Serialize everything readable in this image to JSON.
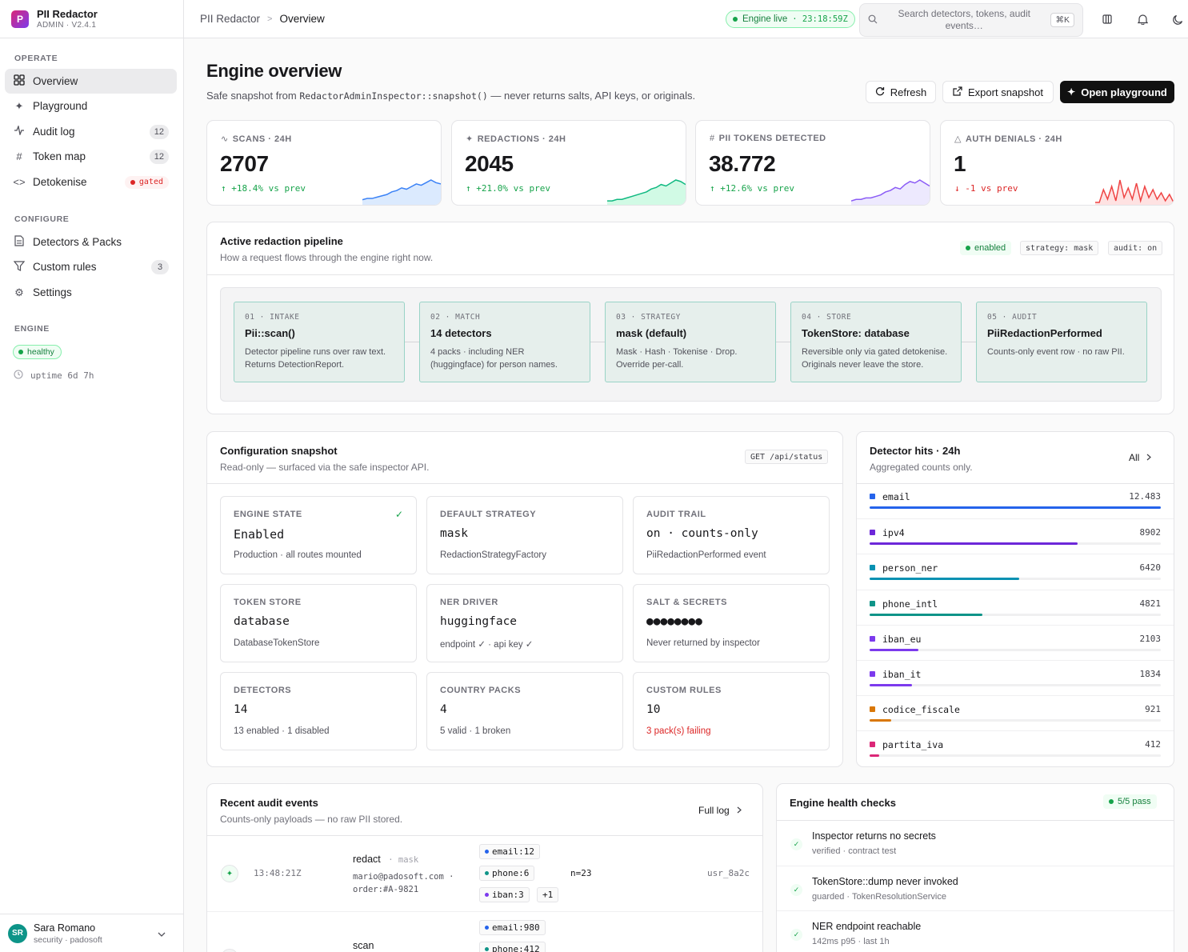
{
  "brand": {
    "logo_letter": "P",
    "name": "PII Redactor",
    "version": "ADMIN · V2.4.1"
  },
  "sidebar": {
    "sections": {
      "operate": "OPERATE",
      "configure": "CONFIGURE",
      "engine": "ENGINE"
    },
    "items": [
      {
        "label": "Overview",
        "icon": "grid-icon",
        "active": true
      },
      {
        "label": "Playground",
        "icon": "sparkle-icon"
      },
      {
        "label": "Audit log",
        "icon": "activity-icon",
        "count": "12"
      },
      {
        "label": "Token map",
        "icon": "hash-icon",
        "count": "12"
      },
      {
        "label": "Detokenise",
        "icon": "code-icon",
        "badge": "gated"
      },
      {
        "label": "Detectors & Packs",
        "icon": "file-icon"
      },
      {
        "label": "Custom rules",
        "icon": "filter-icon",
        "count": "3"
      },
      {
        "label": "Settings",
        "icon": "gear-icon"
      }
    ],
    "engine_status": "healthy",
    "uptime": "uptime 6d 7h"
  },
  "user": {
    "initials": "SR",
    "name": "Sara Romano",
    "role": "security · padosoft"
  },
  "topbar": {
    "breadcrumb": [
      "PII Redactor",
      "Overview"
    ],
    "live_label": "Engine live",
    "live_time": "· 23:18:59Z",
    "search_placeholder": "Search detectors, tokens, audit events…",
    "search_kbd": "⌘K"
  },
  "page": {
    "title": "Engine overview",
    "subtitle_pre": "Safe snapshot from ",
    "subtitle_code": "RedactorAdminInspector::snapshot()",
    "subtitle_post": " — never returns salts, API keys, or originals.",
    "buttons": {
      "refresh": "Refresh",
      "export": "Export snapshot",
      "playground": "Open playground"
    }
  },
  "stats": [
    {
      "label": "SCANS · 24H",
      "icon": "activity-icon",
      "value": "2707",
      "delta": "↑ +18.4% vs prev",
      "trend": "up",
      "color": "#3b82f6",
      "fill": "#dbeafe",
      "spark": [
        2,
        3,
        3,
        4,
        5,
        6,
        8,
        9,
        11,
        10,
        12,
        14,
        13,
        15,
        17,
        15,
        14
      ]
    },
    {
      "label": "REDACTIONS · 24H",
      "icon": "sparkle-icon",
      "value": "2045",
      "delta": "↑ +21.0% vs prev",
      "trend": "up",
      "color": "#10b981",
      "fill": "#d1fae5",
      "spark": [
        1,
        1,
        2,
        2,
        3,
        4,
        5,
        6,
        7,
        9,
        10,
        12,
        11,
        13,
        15,
        14,
        12
      ]
    },
    {
      "label": "PII TOKENS DETECTED",
      "icon": "hash-icon",
      "value": "38.772",
      "delta": "↑ +12.6% vs prev",
      "trend": "up",
      "color": "#8b5cf6",
      "fill": "#ede9fe",
      "spark": [
        1,
        2,
        2,
        3,
        3,
        4,
        5,
        7,
        8,
        10,
        9,
        12,
        14,
        13,
        15,
        13,
        11
      ]
    },
    {
      "label": "AUTH DENIALS · 24H",
      "icon": "warning-icon",
      "value": "1",
      "delta": "↓ -1 vs prev",
      "trend": "down",
      "color": "#ef4444",
      "fill": "#fee2e2",
      "spark": [
        0,
        0,
        8,
        2,
        10,
        1,
        14,
        3,
        9,
        2,
        12,
        1,
        10,
        3,
        8,
        2,
        6,
        1,
        5,
        0
      ]
    }
  ],
  "pipeline": {
    "title": "Active redaction pipeline",
    "subtitle": "How a request flows through the engine right now.",
    "status": "enabled",
    "tags": [
      "strategy: mask",
      "audit: on"
    ],
    "stages": [
      {
        "key": "01 · INTAKE",
        "title": "Pii::scan()",
        "desc": "Detector pipeline runs over raw text. Returns DetectionReport."
      },
      {
        "key": "02 · MATCH",
        "title": "14 detectors",
        "desc": "4 packs · including NER (huggingface) for person names."
      },
      {
        "key": "03 · STRATEGY",
        "title": "mask (default)",
        "desc": "Mask · Hash · Tokenise · Drop. Override per-call."
      },
      {
        "key": "04 · STORE",
        "title": "TokenStore: database",
        "desc": "Reversible only via gated detokenise. Originals never leave the store."
      },
      {
        "key": "05 · AUDIT",
        "title": "PiiRedactionPerformed",
        "desc": "Counts-only event row · no raw PII."
      }
    ]
  },
  "config": {
    "title": "Configuration snapshot",
    "subtitle": "Read-only — surfaced via the safe inspector API.",
    "endpoint": "GET /api/status",
    "items": [
      {
        "key": "ENGINE STATE",
        "value": "Enabled",
        "note": "Production · all routes mounted",
        "check": true
      },
      {
        "key": "DEFAULT STRATEGY",
        "value": "mask",
        "note": "RedactionStrategyFactory"
      },
      {
        "key": "AUDIT TRAIL",
        "value": "on · counts-only",
        "note": "PiiRedactionPerformed event"
      },
      {
        "key": "TOKEN STORE",
        "value": "database",
        "note": "DatabaseTokenStore"
      },
      {
        "key": "NER DRIVER",
        "value": "huggingface",
        "note": "endpoint ✓ · api key ✓"
      },
      {
        "key": "SALT & SECRETS",
        "value": "●●●●●●●●",
        "note": "Never returned by inspector"
      },
      {
        "key": "DETECTORS",
        "value": "14",
        "note": "13 enabled · 1 disabled"
      },
      {
        "key": "COUNTRY PACKS",
        "value": "4",
        "note": "5 valid · 1 broken"
      },
      {
        "key": "CUSTOM RULES",
        "value": "10",
        "note": "3 pack(s) failing",
        "warn": true
      }
    ]
  },
  "hits": {
    "title": "Detector hits · 24h",
    "subtitle": "Aggregated counts only.",
    "filter": "All",
    "rows": [
      {
        "name": "email",
        "value": "12.483",
        "count": 12483,
        "color": "#2563eb"
      },
      {
        "name": "ipv4",
        "value": "8902",
        "count": 8902,
        "color": "#6d28d9"
      },
      {
        "name": "person_ner",
        "value": "6420",
        "count": 6420,
        "color": "#0891b2"
      },
      {
        "name": "phone_intl",
        "value": "4821",
        "count": 4821,
        "color": "#0f9488"
      },
      {
        "name": "iban_eu",
        "value": "2103",
        "count": 2103,
        "color": "#7c3aed"
      },
      {
        "name": "iban_it",
        "value": "1834",
        "count": 1834,
        "color": "#7c3aed"
      },
      {
        "name": "codice_fiscale",
        "value": "921",
        "count": 921,
        "color": "#d97706"
      },
      {
        "name": "partita_iva",
        "value": "412",
        "count": 412,
        "color": "#db2777"
      }
    ]
  },
  "audit": {
    "title": "Recent audit events",
    "subtitle": "Counts-only payloads — no raw PII stored.",
    "link": "Full log",
    "events": [
      {
        "time": "13:48:21Z",
        "action": "redact",
        "strategy": "· mask",
        "context1": "mario@padosoft.com ·",
        "context2": "order:#A-9821",
        "chips": [
          {
            "label": "email:12",
            "color": "#2563eb"
          },
          {
            "label": "phone:6",
            "color": "#0f9488"
          },
          {
            "label": "iban:3",
            "color": "#7c3aed"
          }
        ],
        "more": "+1",
        "n": "n=23",
        "user": "usr_8a2c"
      },
      {
        "time": "",
        "action": "scan",
        "strategy": "",
        "context1": "",
        "context2": "",
        "chips": [
          {
            "label": "email:980",
            "color": "#2563eb"
          },
          {
            "label": "phone:412",
            "color": "#0f9488"
          }
        ],
        "more": "",
        "n": "",
        "user": ""
      }
    ]
  },
  "health": {
    "title": "Engine health checks",
    "summary": "5/5 pass",
    "checks": [
      {
        "title": "Inspector returns no secrets",
        "sub": "verified · contract test"
      },
      {
        "title": "TokenStore::dump never invoked",
        "sub": "guarded · TokenResolutionService"
      },
      {
        "title": "NER endpoint reachable",
        "sub": "142ms p95 · last 1h"
      }
    ]
  }
}
